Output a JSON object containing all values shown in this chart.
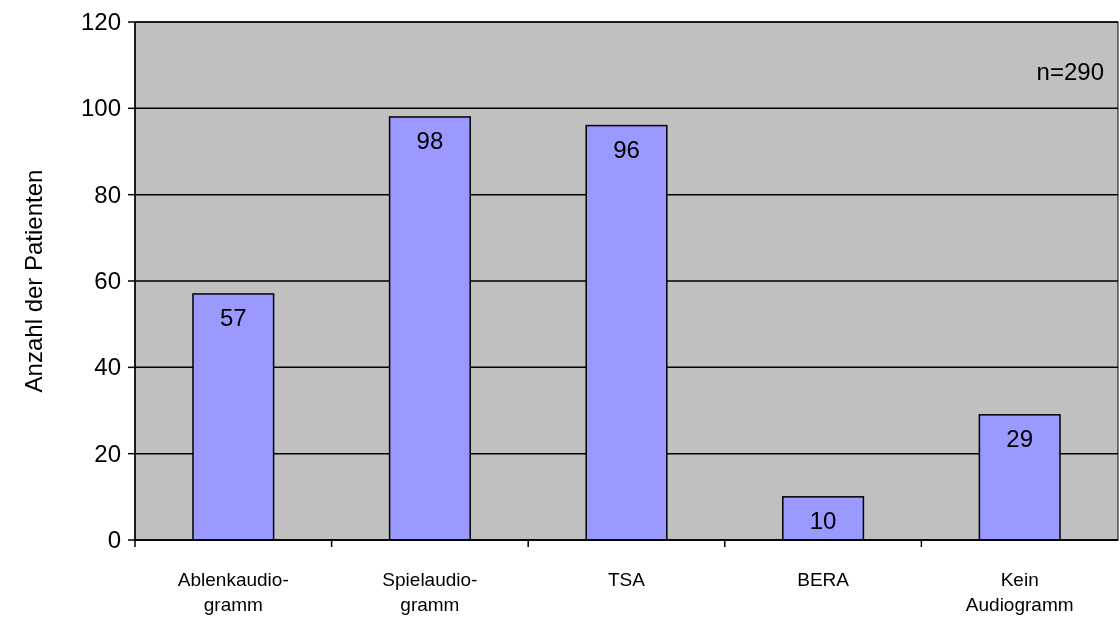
{
  "chart_data": {
    "type": "bar",
    "ylabel": "Anzahl der Patienten",
    "categories": [
      "Ablenkaudio-\ngramm",
      "Spielaudio-\ngramm",
      "TSA",
      "BERA",
      "Kein\nAudiogramm"
    ],
    "values": [
      57,
      98,
      96,
      10,
      29
    ],
    "color": "#9999ff",
    "ylim": [
      0,
      120
    ],
    "yticks": [
      0,
      20,
      40,
      60,
      80,
      100,
      120
    ],
    "grid": "y",
    "data_labels": true,
    "annotations": [
      "n=290"
    ]
  }
}
